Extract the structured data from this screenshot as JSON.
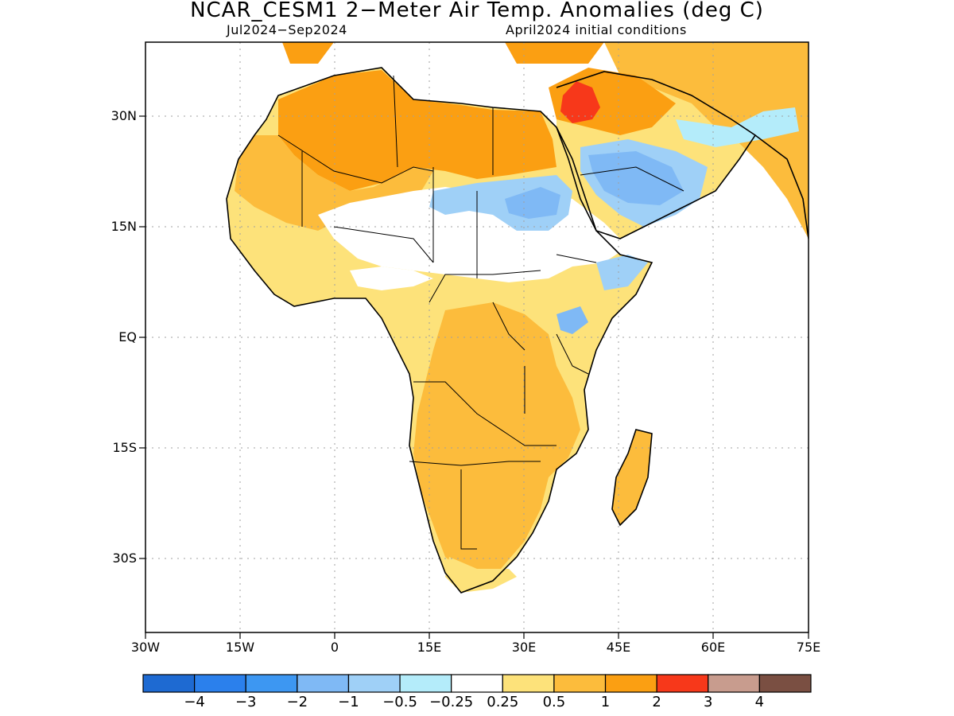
{
  "title": "NCAR_CESM1 2−Meter Air Temp. Anomalies (deg C)",
  "subtitle_left": "Jul2024−Sep2024",
  "subtitle_right": "April2024 initial conditions",
  "axes": {
    "lon_ticks": [
      "30W",
      "15W",
      "0",
      "15E",
      "30E",
      "45E",
      "60E",
      "75E"
    ],
    "lat_ticks": [
      "30N",
      "15N",
      "EQ",
      "15S",
      "30S"
    ],
    "lon_range": [
      -30,
      75
    ],
    "lat_range": [
      -40,
      40
    ],
    "grid": true
  },
  "colorbar": {
    "labels": [
      "−4",
      "−3",
      "−2",
      "−1",
      "−0.5",
      "−0.25",
      "0.25",
      "0.5",
      "1",
      "2",
      "3",
      "4"
    ],
    "colors": [
      "#1e6ad2",
      "#2b80ec",
      "#3d97f2",
      "#7fb9f5",
      "#9fd0f7",
      "#b4ecfa",
      "#ffffff",
      "#fde27a",
      "#fcbc3c",
      "#fb9f12",
      "#f7381a",
      "#c89c8e",
      "#7a4f42"
    ]
  },
  "chart_data": {
    "type": "heatmap",
    "title": "NCAR_CESM1 2−Meter Air Temp. Anomalies (deg C)",
    "variable": "2-Meter Air Temperature Anomaly",
    "units": "deg C",
    "period": "Jul2024−Sep2024",
    "initial_conditions": "April2024",
    "region": "Africa",
    "lon_range": [
      -30,
      75
    ],
    "lat_range": [
      -40,
      40
    ],
    "levels": [
      -4,
      -3,
      -2,
      -1,
      -0.5,
      -0.25,
      0.25,
      0.5,
      1,
      2,
      3,
      4
    ],
    "anomaly_regions": [
      {
        "area": "Northern Sahara / North Africa",
        "range": [
          1,
          2
        ]
      },
      {
        "area": "Syria / Iraq",
        "range": [
          2,
          3
        ]
      },
      {
        "area": "Southern Sahara / Sahel band",
        "range": [
          -1,
          -0.5
        ]
      },
      {
        "area": "Arabian Peninsula (central-south)",
        "range": [
          -2,
          -0.5
        ]
      },
      {
        "area": "West Africa coast",
        "range": [
          0.5,
          1
        ]
      },
      {
        "area": "Central Africa",
        "range": [
          1,
          2
        ]
      },
      {
        "area": "Southern Africa",
        "range": [
          1,
          2
        ]
      },
      {
        "area": "Madagascar",
        "range": [
          1,
          2
        ]
      },
      {
        "area": "Ethiopia / Somalia",
        "range": [
          -1,
          1
        ]
      }
    ]
  }
}
